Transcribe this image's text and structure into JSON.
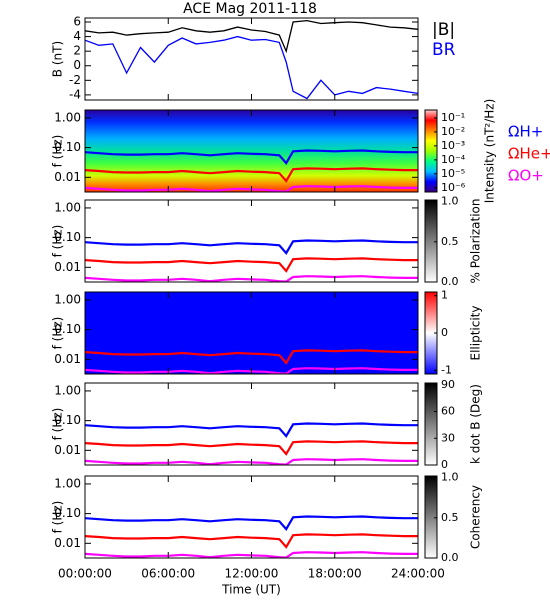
{
  "title": "ACE Mag 2011-118",
  "time_axis": {
    "label": "Time (UT)",
    "xlim": [
      0,
      24
    ],
    "xticks": [
      {
        "value": 0,
        "label": "00:00:00"
      },
      {
        "value": 6,
        "label": "06:00:00"
      },
      {
        "value": 12,
        "label": "12:00:00"
      },
      {
        "value": 18,
        "label": "18:00:00"
      },
      {
        "value": 24,
        "label": "24:00:00"
      }
    ]
  },
  "gyrofrequency": {
    "x": [
      0,
      1,
      2,
      3,
      4,
      5,
      6,
      7,
      8,
      9,
      10,
      11,
      12,
      13,
      14,
      14.5,
      15,
      16,
      17,
      18,
      19,
      20,
      21,
      22,
      23,
      24
    ],
    "series": [
      {
        "name": "ΩH+",
        "color": "#0000ff",
        "values": [
          0.07,
          0.065,
          0.06,
          0.058,
          0.058,
          0.06,
          0.06,
          0.065,
          0.06,
          0.055,
          0.06,
          0.065,
          0.062,
          0.06,
          0.055,
          0.03,
          0.075,
          0.08,
          0.078,
          0.075,
          0.078,
          0.08,
          0.075,
          0.072,
          0.07,
          0.07
        ]
      },
      {
        "name": "ΩHe+",
        "color": "#ff0000",
        "values": [
          0.0175,
          0.0163,
          0.015,
          0.0145,
          0.0145,
          0.015,
          0.015,
          0.0163,
          0.015,
          0.0138,
          0.015,
          0.0163,
          0.0155,
          0.015,
          0.0138,
          0.0075,
          0.0188,
          0.02,
          0.0195,
          0.0188,
          0.0195,
          0.02,
          0.0188,
          0.018,
          0.0175,
          0.0175
        ]
      },
      {
        "name": "ΩO+",
        "color": "#ff00ff",
        "values": [
          0.0044,
          0.0041,
          0.0038,
          0.0036,
          0.0036,
          0.0038,
          0.0038,
          0.0041,
          0.0038,
          0.0034,
          0.0038,
          0.0041,
          0.0039,
          0.0038,
          0.0034,
          0.0033,
          0.0047,
          0.005,
          0.0049,
          0.0047,
          0.0049,
          0.005,
          0.0047,
          0.0045,
          0.0044,
          0.0044
        ]
      }
    ]
  },
  "chart_data": [
    {
      "type": "line",
      "y_label": "B (nT)",
      "ylim": [
        -4.7,
        6.55
      ],
      "yticks": [
        -4,
        -2,
        0,
        2,
        4,
        6
      ],
      "x": [
        0,
        1,
        2,
        3,
        4,
        5,
        6,
        7,
        8,
        9,
        10,
        11,
        12,
        13,
        14,
        14.5,
        15,
        16,
        17,
        18,
        19,
        20,
        21,
        22,
        23,
        24
      ],
      "series": [
        {
          "name": "|B|",
          "color": "#000000",
          "values": [
            4.8,
            4.5,
            4.6,
            4.2,
            4.4,
            4.5,
            4.6,
            5.2,
            4.8,
            4.6,
            4.8,
            5.3,
            4.9,
            4.7,
            4.2,
            2.0,
            6.0,
            6.2,
            5.8,
            5.9,
            6.0,
            5.9,
            5.6,
            5.3,
            5.2,
            5.0
          ]
        },
        {
          "name": "BR",
          "color": "#0000ff",
          "values": [
            3.5,
            2.8,
            3.0,
            -1.0,
            2.5,
            0.5,
            2.8,
            3.8,
            3.0,
            3.2,
            3.5,
            4.0,
            3.5,
            3.6,
            3.2,
            0.5,
            -3.5,
            -4.5,
            -2.0,
            -4.0,
            -3.5,
            -3.8,
            -3.0,
            -3.2,
            -3.5,
            -3.8
          ]
        }
      ]
    },
    {
      "type": "spectrogram",
      "y_label": "f (Hz)",
      "ylog": true,
      "ylim": [
        0.0032,
        1.85
      ],
      "yticks": [
        {
          "value": 1,
          "label": "1.00"
        },
        {
          "value": 0.1,
          "label": "0.10"
        },
        {
          "value": 0.01,
          "label": "0.01"
        }
      ],
      "legend": true,
      "colorbar": {
        "label": "Intensity (nT²/Hz)",
        "log": true,
        "lim": [
          5e-07,
          0.37
        ],
        "ticks": [
          {
            "value": 0.1,
            "label": "10⁻¹"
          },
          {
            "value": 0.01,
            "label": "10⁻²"
          },
          {
            "value": 0.001,
            "label": "10⁻³"
          },
          {
            "value": 0.0001,
            "label": "10⁻⁴"
          },
          {
            "value": 1e-05,
            "label": "10⁻⁵"
          },
          {
            "value": 1e-06,
            "label": "10⁻⁶"
          }
        ],
        "colors": [
          "#3a0080",
          "#0000ff",
          "#00c0ff",
          "#00ff80",
          "#a0ff00",
          "#ffff00",
          "#ff8000",
          "#ff0000",
          "#ffd0d0"
        ]
      }
    },
    {
      "type": "spectrogram",
      "y_label": "f (Hz)",
      "ylog": true,
      "ylim": [
        0.0032,
        1.85
      ],
      "yticks": [
        {
          "value": 1,
          "label": "1.00"
        },
        {
          "value": 0.1,
          "label": "0.10"
        },
        {
          "value": 0.01,
          "label": "0.01"
        }
      ],
      "colorbar": {
        "label": "% Polarization",
        "lim": [
          0,
          1.02
        ],
        "ticks": [
          {
            "value": 0,
            "label": "0.0"
          },
          {
            "value": 0.5,
            "label": "0.5"
          },
          {
            "value": 1,
            "label": "1.0"
          }
        ],
        "colors": [
          "#ffffff",
          "#000000"
        ]
      }
    },
    {
      "type": "spectrogram",
      "y_label": "f (Hz)",
      "ylog": true,
      "ylim": [
        0.0032,
        1.85
      ],
      "yticks": [
        {
          "value": 1,
          "label": "1.00"
        },
        {
          "value": 0.1,
          "label": "0.10"
        },
        {
          "value": 0.01,
          "label": "0.01"
        }
      ],
      "colorbar": {
        "label": "Ellipticity",
        "lim": [
          -1.1,
          1.1
        ],
        "ticks": [
          -1,
          0,
          1
        ],
        "colors": [
          "#0000ff",
          "#ffffff",
          "#ff0000"
        ]
      }
    },
    {
      "type": "spectrogram",
      "y_label": "f (Hz)",
      "ylog": true,
      "ylim": [
        0.0032,
        1.85
      ],
      "yticks": [
        {
          "value": 1,
          "label": "1.00"
        },
        {
          "value": 0.1,
          "label": "0.10"
        },
        {
          "value": 0.01,
          "label": "0.01"
        }
      ],
      "colorbar": {
        "label": "k dot B (Deg)",
        "lim": [
          0,
          92
        ],
        "ticks": [
          0,
          30,
          60,
          90
        ],
        "colors": [
          "#ffffff",
          "#000000"
        ]
      }
    },
    {
      "type": "spectrogram",
      "y_label": "f (Hz)",
      "ylog": true,
      "ylim": [
        0.0032,
        1.85
      ],
      "yticks": [
        {
          "value": 1,
          "label": "1.00"
        },
        {
          "value": 0.1,
          "label": "0.10"
        },
        {
          "value": 0.01,
          "label": "0.01"
        }
      ],
      "colorbar": {
        "label": "Coherency",
        "lim": [
          0,
          1.02
        ],
        "ticks": [
          {
            "value": 0,
            "label": "0.0"
          },
          {
            "value": 0.5,
            "label": "0.5"
          },
          {
            "value": 1,
            "label": "1.0"
          }
        ],
        "colors": [
          "#ffffff",
          "#000000"
        ]
      }
    }
  ]
}
